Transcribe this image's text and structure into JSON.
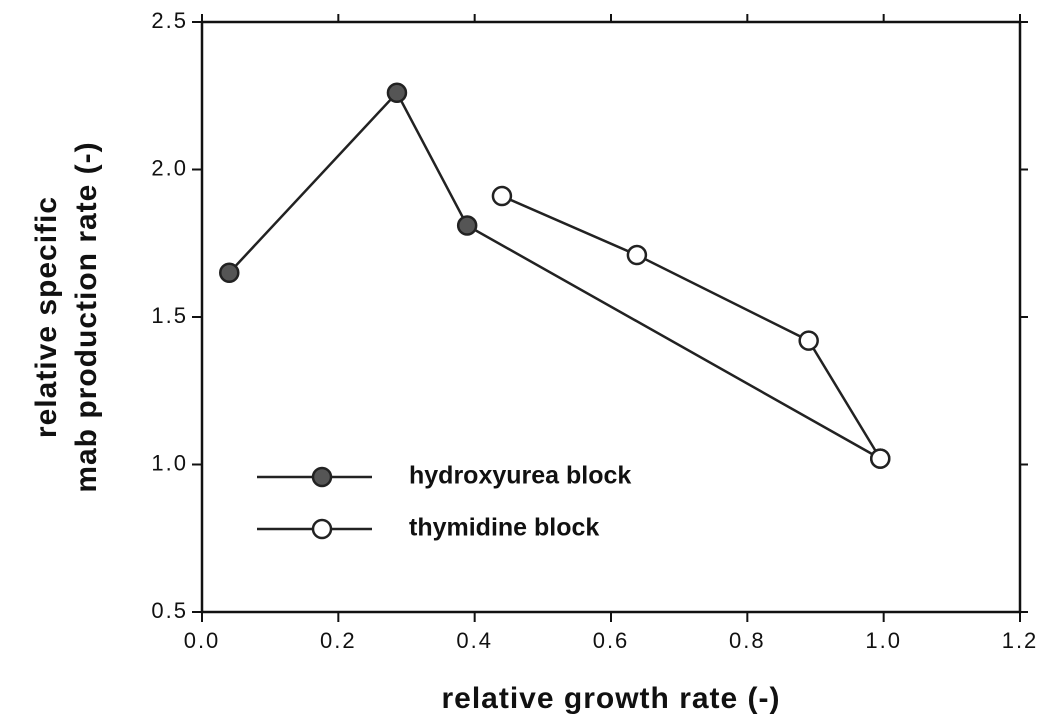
{
  "chart_data": {
    "type": "line",
    "xlabel": "relative growth rate (-)",
    "ylabel": [
      "relative specific",
      "mab production rate (-)"
    ],
    "xlim": [
      0,
      1.2
    ],
    "xticks": [
      {
        "value": 0,
        "label": "0.0"
      },
      0.2,
      0.4,
      0.6,
      0.8,
      {
        "value": 1,
        "label": "1.0"
      },
      1.2
    ],
    "ylim": [
      0.5,
      2.5
    ],
    "yticks": [
      0.5,
      {
        "value": 1,
        "label": "1.0"
      },
      1.5,
      {
        "value": 2,
        "label": "2.0"
      },
      2.5
    ],
    "legend": "lower left",
    "series": [
      {
        "name": "hydroxyurea block",
        "color": "#222222",
        "marker": "filled",
        "x": [
          0.04,
          0.286,
          0.389,
          0.995
        ],
        "values": [
          1.65,
          2.26,
          1.81,
          1.02
        ]
      },
      {
        "name": "thymidine block",
        "color": "#222222",
        "marker": "open",
        "x": [
          0.44,
          0.638,
          0.89,
          0.995
        ],
        "values": [
          1.91,
          1.71,
          1.42,
          1.02
        ]
      }
    ]
  }
}
